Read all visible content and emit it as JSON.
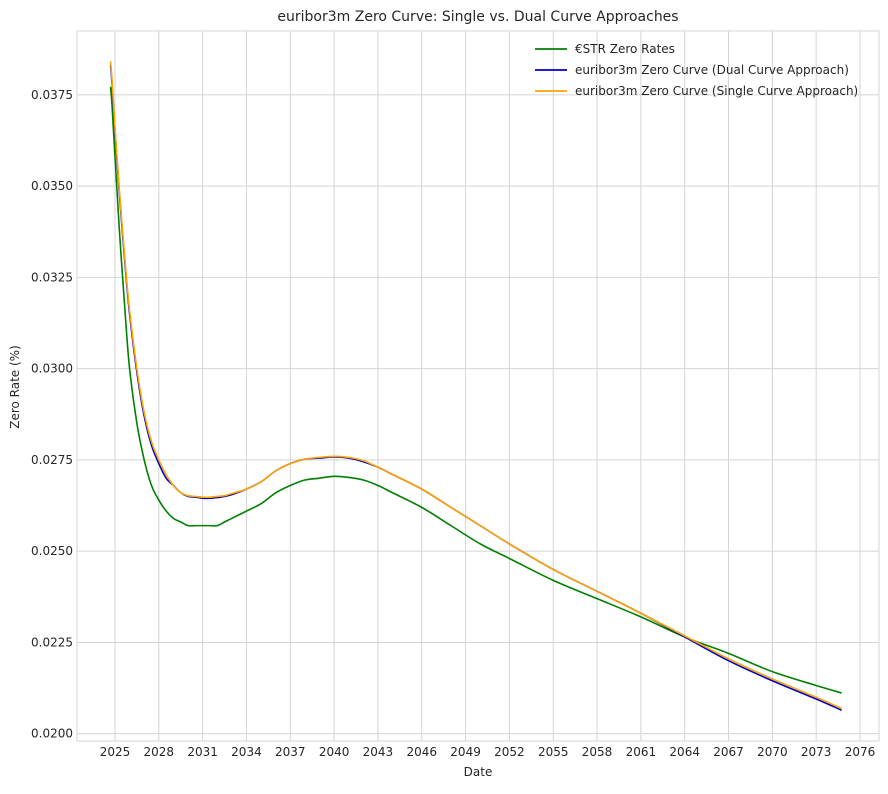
{
  "chart_data": {
    "type": "line",
    "title": "euribor3m Zero Curve: Single vs. Dual Curve Approaches",
    "xlabel": "Date",
    "ylabel": "Zero Rate (%)",
    "xlim": [
      2022.4,
      2077.3
    ],
    "ylim": [
      0.0198,
      0.03925
    ],
    "x_ticks": [
      2025,
      2028,
      2031,
      2034,
      2037,
      2040,
      2043,
      2046,
      2049,
      2052,
      2055,
      2058,
      2061,
      2064,
      2067,
      2070,
      2073,
      2076
    ],
    "x_tick_labels": [
      "2025",
      "2028",
      "2031",
      "2034",
      "2037",
      "2040",
      "2043",
      "2046",
      "2049",
      "2052",
      "2055",
      "2058",
      "2061",
      "2064",
      "2067",
      "2070",
      "2073",
      "2076"
    ],
    "y_ticks": [
      0.02,
      0.0225,
      0.025,
      0.0275,
      0.03,
      0.0325,
      0.035,
      0.0375
    ],
    "y_tick_labels": [
      "0.0200",
      "0.0225",
      "0.0250",
      "0.0275",
      "0.0300",
      "0.0325",
      "0.0350",
      "0.0375"
    ],
    "grid": true,
    "legend_position": "top-right",
    "series": [
      {
        "name": "€STR Zero Rates",
        "color": "#008000",
        "x": [
          2024.7,
          2024.8,
          2025.0,
          2025.3,
          2025.7,
          2026.0,
          2026.5,
          2027.0,
          2027.5,
          2028.0,
          2028.5,
          2029.0,
          2029.5,
          2030.0,
          2030.5,
          2031.0,
          2031.5,
          2032.0,
          2032.5,
          2033.0,
          2034.0,
          2035.0,
          2036.0,
          2037.0,
          2038.0,
          2039.0,
          2040.0,
          2041.0,
          2042.0,
          2043.0,
          2044.0,
          2046.0,
          2048.0,
          2050.0,
          2052.0,
          2055.0,
          2058.0,
          2061.0,
          2064.0,
          2067.0,
          2070.0,
          2073.0,
          2074.7
        ],
        "values": [
          0.0377,
          0.0372,
          0.0358,
          0.0338,
          0.0315,
          0.03,
          0.0285,
          0.0275,
          0.0268,
          0.0264,
          0.0261,
          0.0259,
          0.0258,
          0.0257,
          0.0257,
          0.0257,
          0.0257,
          0.0257,
          0.0258,
          0.0259,
          0.0261,
          0.0263,
          0.0266,
          0.0268,
          0.02695,
          0.027,
          0.02705,
          0.02702,
          0.02695,
          0.0268,
          0.0266,
          0.0262,
          0.0257,
          0.0252,
          0.0248,
          0.0242,
          0.0237,
          0.0232,
          0.02265,
          0.0222,
          0.0217,
          0.02132,
          0.02112
        ]
      },
      {
        "name": "euribor3m Zero Curve (Dual Curve Approach)",
        "color": "#0000cc",
        "x": [
          2024.7,
          2024.8,
          2025.0,
          2025.3,
          2025.7,
          2026.0,
          2026.5,
          2027.0,
          2027.5,
          2028.0,
          2028.5,
          2029.0,
          2029.5,
          2030.0,
          2030.5,
          2031.0,
          2031.5,
          2032.0,
          2032.5,
          2033.0,
          2034.0,
          2035.0,
          2036.0,
          2037.0,
          2038.0,
          2039.0,
          2040.0,
          2041.0,
          2042.0,
          2043.0,
          2044.0,
          2046.0,
          2048.0,
          2050.0,
          2052.0,
          2055.0,
          2058.0,
          2061.0,
          2064.0,
          2067.0,
          2070.0,
          2073.0,
          2074.7
        ],
        "values": [
          0.0383,
          0.0378,
          0.0365,
          0.0348,
          0.0328,
          0.0315,
          0.0299,
          0.0287,
          0.0279,
          0.0274,
          0.027,
          0.0268,
          0.0266,
          0.0265,
          0.02648,
          0.02645,
          0.02645,
          0.02647,
          0.0265,
          0.02655,
          0.0267,
          0.0269,
          0.0272,
          0.0274,
          0.02752,
          0.02755,
          0.02758,
          0.02755,
          0.02745,
          0.0273,
          0.0271,
          0.0267,
          0.0262,
          0.0257,
          0.0252,
          0.0245,
          0.0239,
          0.0233,
          0.02265,
          0.022,
          0.02145,
          0.02095,
          0.02065
        ]
      },
      {
        "name": "euribor3m Zero Curve (Single Curve Approach)",
        "color": "#ffa500",
        "x": [
          2024.7,
          2024.8,
          2025.0,
          2025.3,
          2025.7,
          2026.0,
          2026.5,
          2027.0,
          2027.5,
          2028.0,
          2028.5,
          2029.0,
          2029.5,
          2030.0,
          2030.5,
          2031.0,
          2031.5,
          2032.0,
          2032.5,
          2033.0,
          2034.0,
          2035.0,
          2036.0,
          2037.0,
          2038.0,
          2039.0,
          2040.0,
          2041.0,
          2042.0,
          2043.0,
          2044.0,
          2046.0,
          2048.0,
          2050.0,
          2052.0,
          2055.0,
          2058.0,
          2061.0,
          2064.0,
          2067.0,
          2070.0,
          2073.0,
          2074.7
        ],
        "values": [
          0.0384,
          0.0379,
          0.0366,
          0.0349,
          0.0329,
          0.0316,
          0.03,
          0.0288,
          0.028,
          0.0275,
          0.0271,
          0.0268,
          0.0266,
          0.02652,
          0.0265,
          0.02648,
          0.02648,
          0.0265,
          0.02652,
          0.02658,
          0.0267,
          0.0269,
          0.0272,
          0.0274,
          0.02752,
          0.02757,
          0.0276,
          0.02757,
          0.02748,
          0.0273,
          0.0271,
          0.0267,
          0.0262,
          0.0257,
          0.0252,
          0.0245,
          0.0239,
          0.0233,
          0.02268,
          0.02205,
          0.0215,
          0.021,
          0.0207
        ]
      }
    ]
  }
}
